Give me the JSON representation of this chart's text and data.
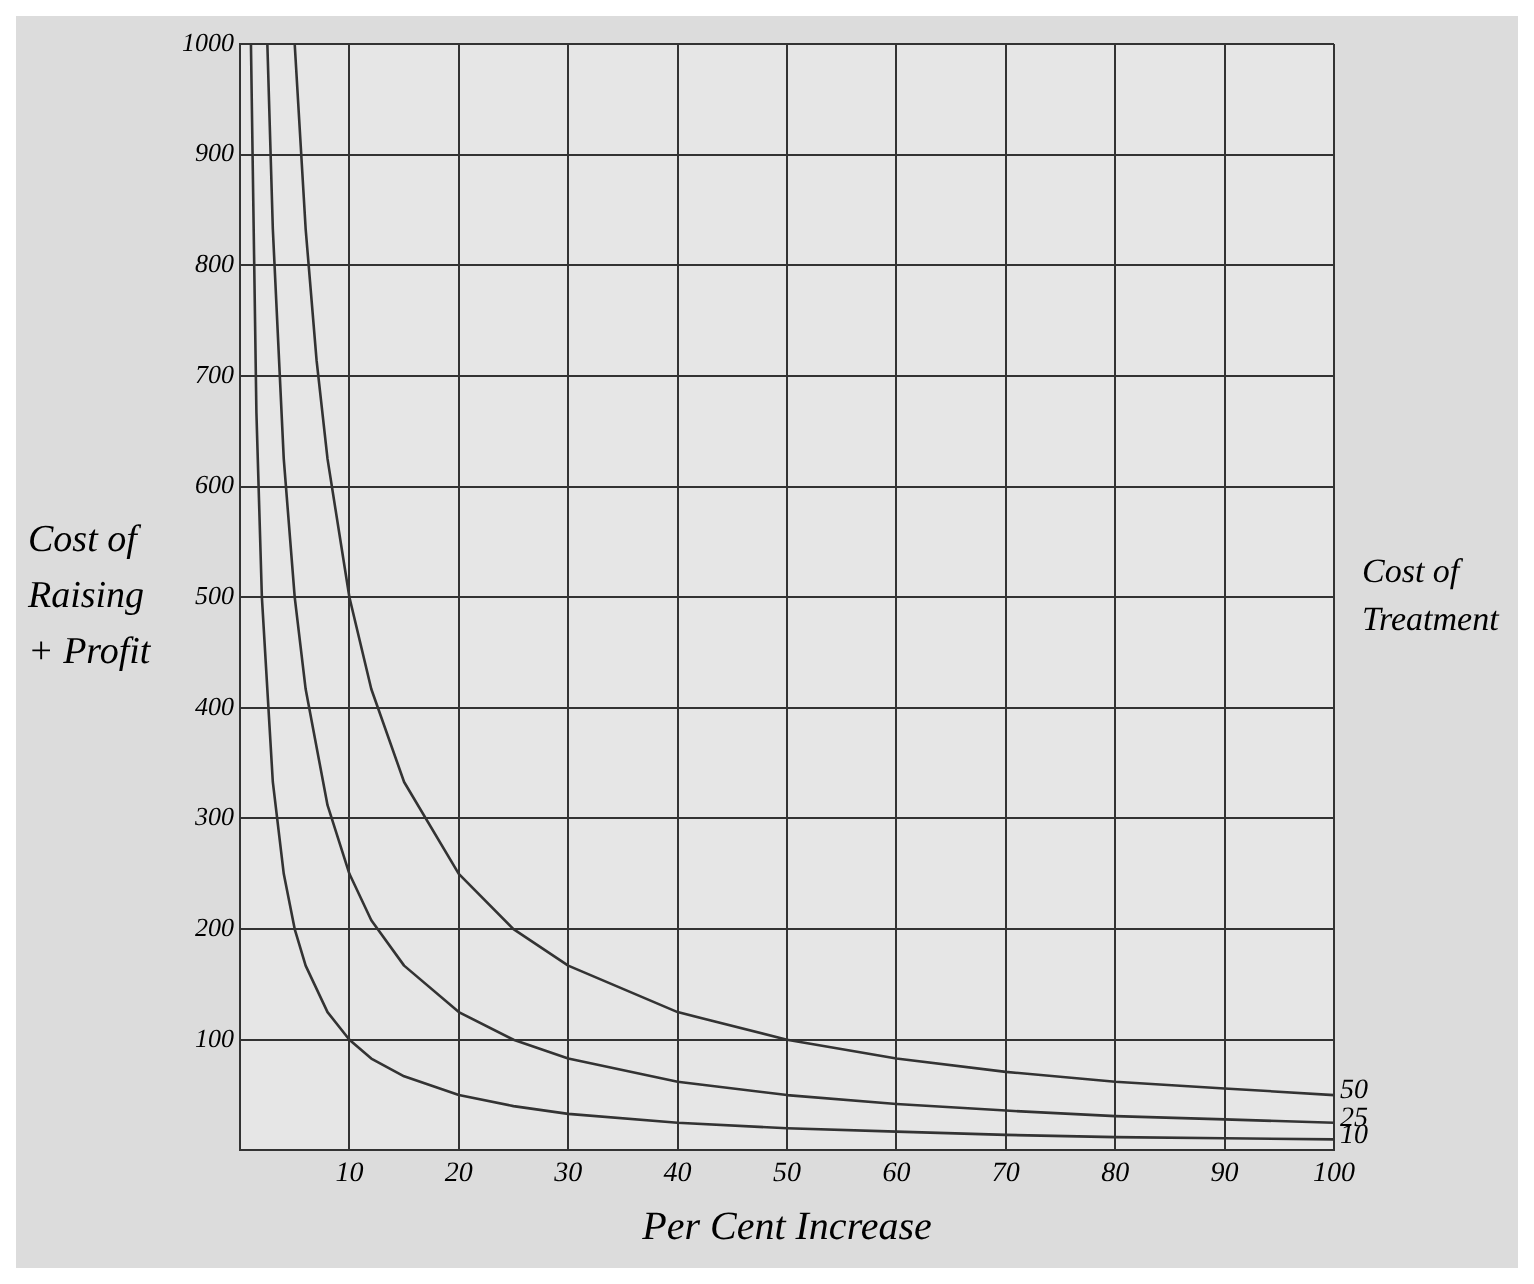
{
  "chart_data": {
    "type": "line",
    "xlabel": "Per Cent Increase",
    "ylabel": "Cost of Raising + Profit",
    "y2label": "Cost of Treatment",
    "xlim": [
      0,
      100
    ],
    "xticks": [
      10,
      20,
      30,
      40,
      50,
      60,
      70,
      80,
      90,
      100
    ],
    "ylim": [
      0,
      1000
    ],
    "yticks": [
      100,
      200,
      300,
      400,
      500,
      600,
      700,
      800,
      900,
      1000
    ],
    "grid": true,
    "legend": false,
    "marker": "none",
    "line_style": "solid",
    "series": [
      {
        "name": "50",
        "color": "#333333",
        "x": [
          5,
          6,
          7,
          8,
          10,
          12,
          15,
          20,
          25,
          30,
          40,
          50,
          60,
          70,
          80,
          90,
          100
        ],
        "values": [
          1000,
          833,
          714,
          625,
          500,
          417,
          333,
          250,
          200,
          167,
          125,
          100,
          83,
          71,
          62,
          56,
          50
        ]
      },
      {
        "name": "25",
        "color": "#333333",
        "x": [
          2.5,
          3,
          4,
          5,
          6,
          8,
          10,
          12,
          15,
          20,
          25,
          30,
          40,
          50,
          60,
          70,
          80,
          90,
          100
        ],
        "values": [
          1000,
          833,
          625,
          500,
          417,
          312,
          250,
          208,
          167,
          125,
          100,
          83,
          62,
          50,
          42,
          36,
          31,
          28,
          25
        ]
      },
      {
        "name": "10",
        "color": "#333333",
        "x": [
          1,
          1.5,
          2,
          3,
          4,
          5,
          6,
          8,
          10,
          12,
          15,
          20,
          25,
          30,
          40,
          50,
          60,
          70,
          80,
          90,
          100
        ],
        "values": [
          1000,
          667,
          500,
          333,
          250,
          200,
          167,
          125,
          100,
          83,
          67,
          50,
          40,
          33,
          25,
          20,
          17,
          14,
          12,
          11,
          10
        ]
      }
    ]
  }
}
